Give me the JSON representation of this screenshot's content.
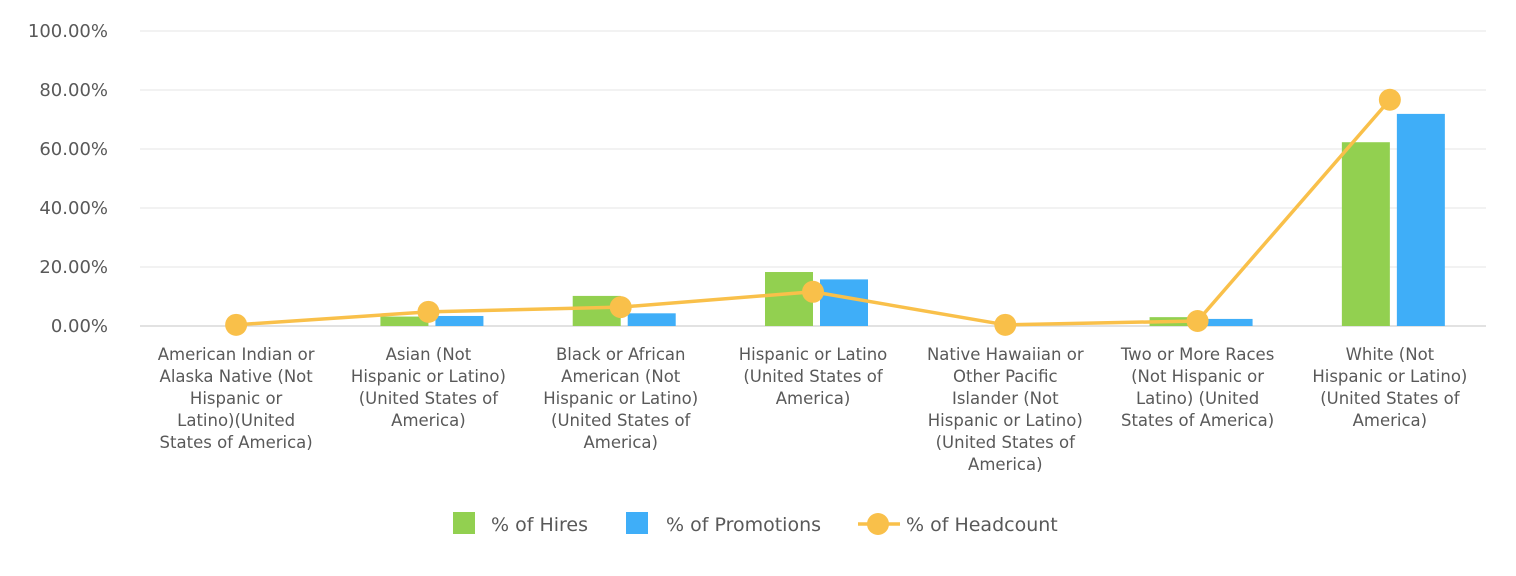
{
  "chart_data": {
    "type": "bar",
    "title": "",
    "xlabel": "",
    "ylabel": "",
    "ylim": [
      0,
      100
    ],
    "yticks": [
      0,
      20,
      40,
      60,
      80,
      100
    ],
    "ytick_labels": [
      "0.00%",
      "20.00%",
      "40.00%",
      "60.00%",
      "80.00%",
      "100.00%"
    ],
    "categories": [
      [
        "American Indian or",
        "Alaska Native (Not",
        "Hispanic or",
        "Latino)(United",
        "States of America)"
      ],
      [
        "Asian (Not",
        "Hispanic or Latino)",
        "(United States of",
        "America)"
      ],
      [
        "Black or African",
        "American (Not",
        "Hispanic or Latino)",
        "(United States of",
        "America)"
      ],
      [
        "Hispanic or Latino",
        "(United States of",
        "America)"
      ],
      [
        "Native Hawaiian or",
        "Other Pacific",
        "Islander (Not",
        "Hispanic or Latino)",
        "(United States of",
        "America)"
      ],
      [
        "Two or More Races",
        "(Not Hispanic or",
        "Latino) (United",
        "States of America)"
      ],
      [
        "White (Not",
        "Hispanic or Latino)",
        "(United States of",
        "America)"
      ]
    ],
    "series": [
      {
        "name": "% of Hires",
        "kind": "bar",
        "color": "#92D050",
        "values": [
          0.0,
          3.2,
          10.2,
          18.3,
          0.0,
          3.0,
          62.3
        ]
      },
      {
        "name": "% of Promotions",
        "kind": "bar",
        "color": "#3FAEF8",
        "values": [
          0.0,
          3.4,
          4.3,
          15.8,
          0.0,
          2.4,
          71.9
        ]
      },
      {
        "name": "% of Headcount",
        "kind": "line",
        "color": "#F9C04A",
        "values": [
          0.4,
          4.8,
          6.4,
          11.6,
          0.4,
          1.7,
          76.7
        ]
      }
    ],
    "grid": true,
    "legend_position": "bottom"
  }
}
